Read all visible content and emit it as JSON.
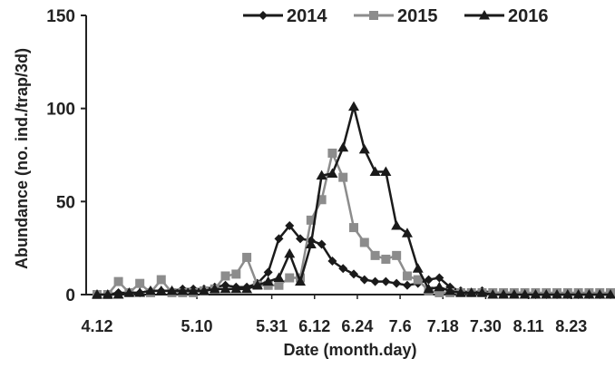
{
  "chart_data": {
    "type": "line",
    "title": "",
    "xlabel": "Date (month.day)",
    "ylabel": "Abundance (no. ind./trap/3d)",
    "ylim": [
      0,
      150
    ],
    "yticks": [
      "0",
      "50",
      "100",
      "150"
    ],
    "xtick_labels": [
      "4.12",
      "5.10",
      "5.31",
      "6.12",
      "6.24",
      "7.6",
      "7.18",
      "7.30",
      "8.11",
      "8.23"
    ],
    "x_points": [
      "4.12",
      "4.15",
      "4.18",
      "4.21",
      "4.24",
      "4.27",
      "4.30",
      "5.3",
      "5.6",
      "5.9",
      "5.12",
      "5.15",
      "5.18",
      "5.21",
      "5.24",
      "5.27",
      "5.30",
      "6.2",
      "6.5",
      "6.8",
      "6.11",
      "6.14",
      "6.17",
      "6.20",
      "6.23",
      "6.26",
      "6.29",
      "7.2",
      "7.5",
      "7.8",
      "7.11",
      "7.14",
      "7.17",
      "7.20",
      "7.23",
      "7.26",
      "7.29",
      "8.1",
      "8.4",
      "8.7",
      "8.10",
      "8.13",
      "8.16",
      "8.19",
      "8.22",
      "8.25",
      "8.28",
      "8.31",
      "9.3"
    ],
    "legend_position": "top-right",
    "grid": false,
    "series": [
      {
        "name": "2014",
        "marker": "diamond",
        "color": "#1a1a1a",
        "values": [
          0,
          0,
          1,
          1,
          1,
          2,
          2,
          2,
          3,
          3,
          3,
          4,
          5,
          4,
          4,
          6,
          12,
          30,
          37,
          30,
          29,
          27,
          18,
          14,
          11,
          8,
          7,
          7,
          6,
          5,
          6,
          8,
          9,
          4,
          2,
          1,
          2,
          1,
          1,
          1,
          1,
          0,
          0,
          0,
          0,
          0,
          0,
          0,
          0
        ]
      },
      {
        "name": "2015",
        "marker": "square",
        "color": "#8c8c8c",
        "values": [
          0,
          0,
          7,
          1,
          6,
          1,
          8,
          1,
          1,
          1,
          2,
          3,
          10,
          11,
          20,
          5,
          5,
          5,
          9,
          9,
          40,
          51,
          76,
          63,
          36,
          28,
          21,
          19,
          21,
          10,
          8,
          2,
          1,
          1,
          1,
          1,
          1,
          1,
          1,
          1,
          1,
          1,
          1,
          1,
          1,
          1,
          1,
          1,
          1
        ]
      },
      {
        "name": "2016",
        "marker": "triangle",
        "color": "#1a1a1a",
        "values": [
          0,
          0,
          0,
          1,
          1,
          2,
          2,
          2,
          2,
          2,
          2,
          3,
          3,
          3,
          3,
          5,
          7,
          9,
          22,
          7,
          27,
          64,
          65,
          79,
          101,
          78,
          66,
          66,
          37,
          33,
          14,
          3,
          4,
          2,
          1,
          1,
          1,
          0,
          0,
          0,
          0,
          0,
          0,
          0,
          0,
          0,
          0,
          0,
          0
        ]
      }
    ]
  }
}
